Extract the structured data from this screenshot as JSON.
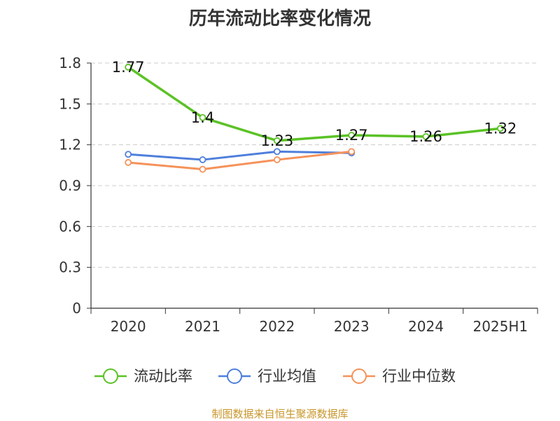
{
  "chart_data": {
    "type": "line",
    "title": "历年流动比率变化情况",
    "categories": [
      "2020",
      "2021",
      "2022",
      "2023",
      "2024",
      "2025H1"
    ],
    "ylim": [
      0,
      1.8
    ],
    "yticks": [
      "0",
      "0.3",
      "0.6",
      "0.9",
      "1.2",
      "1.5",
      "1.8"
    ],
    "grid": true,
    "legend_position": "bottom",
    "series": [
      {
        "name": "流动比率",
        "color": "#5bc226",
        "values": [
          1.77,
          1.4,
          1.23,
          1.27,
          1.26,
          1.32
        ],
        "labels": [
          "1.77",
          "1.4",
          "1.23",
          "1.27",
          "1.26",
          "1.32"
        ]
      },
      {
        "name": "行业均值",
        "color": "#4f7fdb",
        "values": [
          1.13,
          1.09,
          1.15,
          1.14,
          null,
          null
        ]
      },
      {
        "name": "行业中位数",
        "color": "#f5925a",
        "values": [
          1.07,
          1.02,
          1.09,
          1.15,
          null,
          null
        ]
      }
    ]
  },
  "footer": {
    "source": "制图数据来自恒生聚源数据库"
  }
}
